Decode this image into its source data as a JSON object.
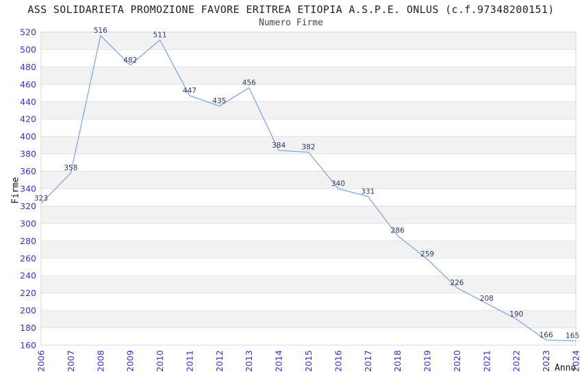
{
  "chart_data": {
    "type": "line",
    "title": "ASS SOLIDARIETA PROMOZIONE FAVORE ERITREA ETIOPIA A.S.P.E. ONLUS (c.f.97348200151)",
    "subtitle": "Numero Firme",
    "xlabel": "Anno",
    "ylabel": "Firme",
    "x": [
      2006,
      2007,
      2008,
      2009,
      2010,
      2011,
      2012,
      2013,
      2014,
      2015,
      2016,
      2017,
      2018,
      2019,
      2020,
      2021,
      2022,
      2023,
      2024
    ],
    "values": [
      323,
      358,
      516,
      482,
      511,
      447,
      435,
      456,
      384,
      382,
      340,
      331,
      286,
      259,
      226,
      208,
      190,
      166,
      165
    ],
    "ylim": [
      160,
      520
    ],
    "ytick_step": 20,
    "grid": "horizontal-bands-alternating",
    "legend": "none",
    "point_markers": false,
    "data_labels_visible": true
  },
  "colors": {
    "line": "#7da7e4",
    "tick_label": "#3232cd",
    "data_label": "#33336b",
    "band": "#f2f2f2",
    "gridline": "#e3e3e3",
    "plot_border": "#d5d5d5",
    "title": "#222222",
    "subtitle": "#444444",
    "background": "#ffffff"
  }
}
